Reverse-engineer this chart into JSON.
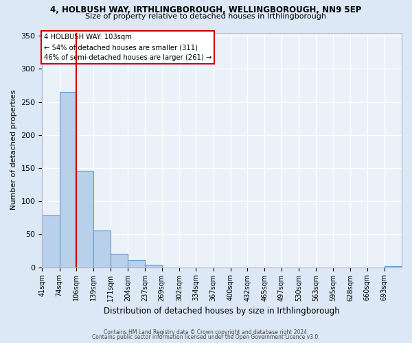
{
  "title_line1": "4, HOLBUSH WAY, IRTHLINGBOROUGH, WELLINGBOROUGH, NN9 5EP",
  "title_line2": "Size of property relative to detached houses in Irthlingborough",
  "xlabel": "Distribution of detached houses by size in Irthlingborough",
  "ylabel": "Number of detached properties",
  "bin_labels": [
    "41sqm",
    "74sqm",
    "106sqm",
    "139sqm",
    "171sqm",
    "204sqm",
    "237sqm",
    "269sqm",
    "302sqm",
    "334sqm",
    "367sqm",
    "400sqm",
    "432sqm",
    "465sqm",
    "497sqm",
    "530sqm",
    "563sqm",
    "595sqm",
    "628sqm",
    "660sqm",
    "693sqm"
  ],
  "bin_edges": [
    41,
    74,
    106,
    139,
    171,
    204,
    237,
    269,
    302,
    334,
    367,
    400,
    432,
    465,
    497,
    530,
    563,
    595,
    628,
    660,
    693,
    726
  ],
  "bar_values": [
    78,
    265,
    146,
    56,
    20,
    11,
    4,
    0,
    0,
    0,
    0,
    0,
    0,
    0,
    0,
    0,
    0,
    0,
    0,
    0,
    2
  ],
  "bar_color": "#b8d0ea",
  "bar_edge_color": "#6699cc",
  "property_line_x": 106,
  "annotation_title": "4 HOLBUSH WAY: 103sqm",
  "annotation_line1": "← 54% of detached houses are smaller (311)",
  "annotation_line2": "46% of semi-detached houses are larger (261) →",
  "annotation_box_color": "#ffffff",
  "annotation_box_edge": "#cc0000",
  "property_line_color": "#cc0000",
  "ylim": [
    0,
    355
  ],
  "yticks": [
    0,
    50,
    100,
    150,
    200,
    250,
    300,
    350
  ],
  "footer_line1": "Contains HM Land Registry data © Crown copyright and database right 2024.",
  "footer_line2": "Contains public sector information licensed under the Open Government Licence v3.0.",
  "background_color": "#dce8f5",
  "plot_bg_color": "#eaf1f8",
  "grid_color": "#ffffff"
}
